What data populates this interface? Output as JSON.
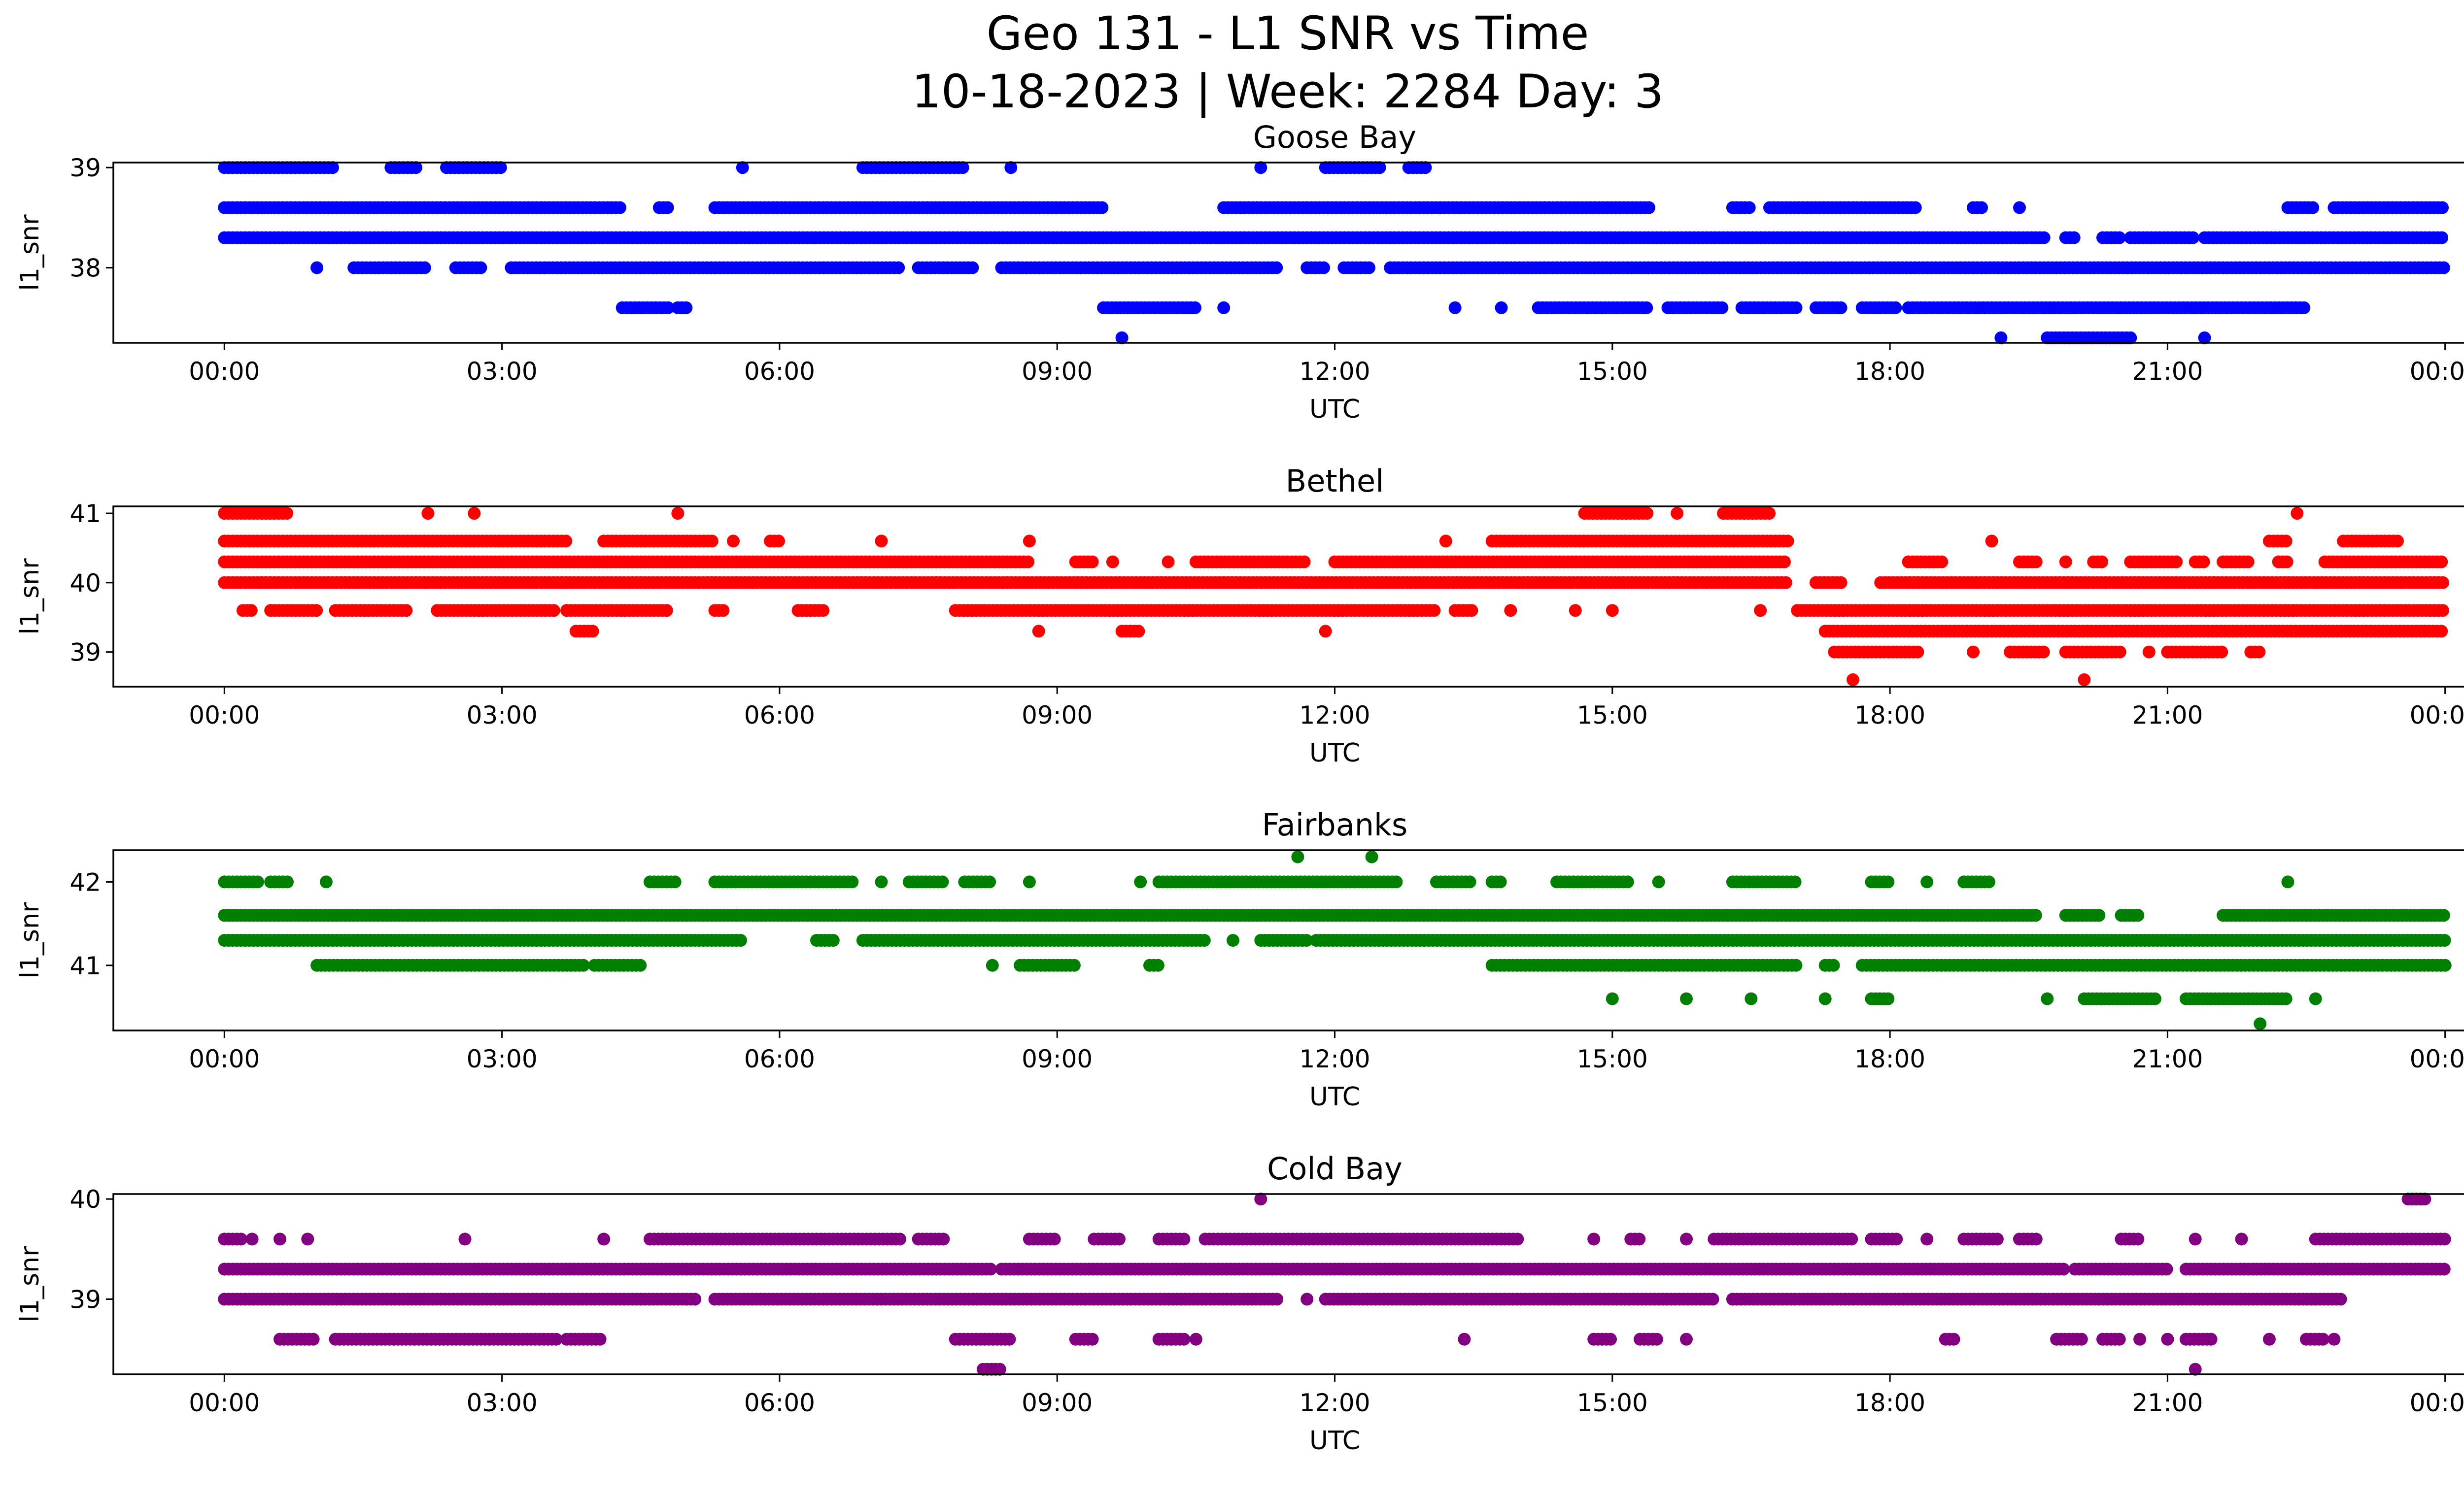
{
  "figure": {
    "title_line1": "Geo 131 - L1 SNR vs Time",
    "title_line2": "10-18-2023 | Week: 2284 Day: 3"
  },
  "chart_data": [
    {
      "type": "scatter",
      "title": "Goose Bay",
      "xlabel": "UTC",
      "ylabel": "l1_snr",
      "color": "#0000ff",
      "x_unit": "hours UTC",
      "x_ticks": [
        "00:00",
        "03:00",
        "06:00",
        "09:00",
        "12:00",
        "15:00",
        "18:00",
        "21:00",
        "00:00"
      ],
      "xlim": [
        -1.2,
        25.2
      ],
      "y_ticks": [
        38,
        39
      ],
      "ylim": [
        37.25,
        39.05
      ],
      "levels": [
        {
          "y": 39.0,
          "segments": [
            [
              0.0,
              1.2
            ],
            [
              1.8,
              2.1
            ],
            [
              2.4,
              3.0
            ],
            [
              5.6,
              5.6
            ],
            [
              6.9,
              8.0
            ],
            [
              8.5,
              8.5
            ],
            [
              11.2,
              11.2
            ],
            [
              11.9,
              12.5
            ],
            [
              12.8,
              13.0
            ]
          ]
        },
        {
          "y": 38.6,
          "segments": [
            [
              0.0,
              4.3
            ],
            [
              4.7,
              4.8
            ],
            [
              5.3,
              9.5
            ],
            [
              10.8,
              14.0
            ],
            [
              14.0,
              15.4
            ],
            [
              16.3,
              16.5
            ],
            [
              16.7,
              18.3
            ],
            [
              18.9,
              19.0
            ],
            [
              19.4,
              19.4
            ],
            [
              22.3,
              22.6
            ],
            [
              22.8,
              24.0
            ]
          ]
        },
        {
          "y": 38.3,
          "segments": [
            [
              0.0,
              19.7
            ],
            [
              19.9,
              20.0
            ],
            [
              20.3,
              20.5
            ],
            [
              20.6,
              21.3
            ],
            [
              21.4,
              24.0
            ]
          ]
        },
        {
          "y": 38.0,
          "segments": [
            [
              1.0,
              1.0
            ],
            [
              1.4,
              2.2
            ],
            [
              2.5,
              2.8
            ],
            [
              3.1,
              7.3
            ],
            [
              7.5,
              8.1
            ],
            [
              8.4,
              11.4
            ],
            [
              11.7,
              11.9
            ],
            [
              12.1,
              12.4
            ],
            [
              12.6,
              24.0
            ]
          ]
        },
        {
          "y": 37.6,
          "segments": [
            [
              4.3,
              4.8
            ],
            [
              4.9,
              5.0
            ],
            [
              9.5,
              10.5
            ],
            [
              10.8,
              10.8
            ],
            [
              13.3,
              13.3
            ],
            [
              13.8,
              13.8
            ],
            [
              14.2,
              15.4
            ],
            [
              15.6,
              16.2
            ],
            [
              16.4,
              17.0
            ],
            [
              17.2,
              17.5
            ],
            [
              17.7,
              18.1
            ],
            [
              18.2,
              22.5
            ]
          ]
        },
        {
          "y": 37.3,
          "segments": [
            [
              9.7,
              9.7
            ],
            [
              19.2,
              19.2
            ],
            [
              19.7,
              20.6
            ],
            [
              21.4,
              21.4
            ]
          ]
        }
      ]
    },
    {
      "type": "scatter",
      "title": "Bethel",
      "xlabel": "UTC",
      "ylabel": "l1_snr",
      "color": "#ff0000",
      "x_unit": "hours UTC",
      "x_ticks": [
        "00:00",
        "03:00",
        "06:00",
        "09:00",
        "12:00",
        "15:00",
        "18:00",
        "21:00",
        "00:00"
      ],
      "xlim": [
        -1.2,
        25.2
      ],
      "y_ticks": [
        39,
        40,
        41
      ],
      "ylim": [
        38.5,
        41.1
      ],
      "levels": [
        {
          "y": 41.0,
          "segments": [
            [
              0.0,
              0.7
            ],
            [
              2.2,
              2.2
            ],
            [
              2.7,
              2.7
            ],
            [
              4.9,
              4.9
            ],
            [
              14.7,
              15.4
            ],
            [
              15.7,
              15.7
            ],
            [
              16.2,
              16.7
            ],
            [
              22.4,
              22.4
            ]
          ]
        },
        {
          "y": 40.6,
          "segments": [
            [
              0.0,
              3.7
            ],
            [
              4.1,
              5.3
            ],
            [
              5.5,
              5.5
            ],
            [
              5.9,
              6.0
            ],
            [
              7.1,
              7.1
            ],
            [
              8.7,
              8.7
            ],
            [
              13.2,
              13.2
            ],
            [
              13.7,
              16.9
            ],
            [
              19.1,
              19.1
            ],
            [
              22.1,
              22.3
            ],
            [
              22.9,
              23.5
            ]
          ]
        },
        {
          "y": 40.3,
          "segments": [
            [
              0.0,
              8.7
            ],
            [
              9.2,
              9.4
            ],
            [
              9.6,
              9.6
            ],
            [
              10.2,
              10.2
            ],
            [
              10.5,
              11.7
            ],
            [
              12.0,
              16.9
            ],
            [
              18.2,
              18.6
            ],
            [
              19.4,
              19.6
            ],
            [
              19.9,
              19.9
            ],
            [
              20.2,
              20.3
            ],
            [
              20.6,
              21.1
            ],
            [
              21.3,
              21.4
            ],
            [
              21.6,
              21.9
            ],
            [
              22.2,
              22.3
            ],
            [
              22.7,
              24.0
            ]
          ]
        },
        {
          "y": 40.0,
          "segments": [
            [
              0.0,
              16.9
            ],
            [
              17.2,
              17.5
            ],
            [
              17.9,
              24.0
            ]
          ]
        },
        {
          "y": 39.6,
          "segments": [
            [
              0.2,
              0.3
            ],
            [
              0.5,
              1.0
            ],
            [
              1.2,
              2.0
            ],
            [
              2.3,
              3.6
            ],
            [
              3.7,
              4.8
            ],
            [
              5.3,
              5.4
            ],
            [
              6.2,
              6.5
            ],
            [
              7.9,
              13.1
            ],
            [
              13.3,
              13.5
            ],
            [
              13.9,
              13.9
            ],
            [
              14.6,
              14.6
            ],
            [
              15.0,
              15.0
            ],
            [
              16.6,
              16.6
            ],
            [
              17.0,
              24.0
            ]
          ]
        },
        {
          "y": 39.3,
          "segments": [
            [
              3.8,
              4.0
            ],
            [
              8.8,
              8.8
            ],
            [
              9.7,
              9.9
            ],
            [
              11.9,
              11.9
            ],
            [
              17.3,
              24.0
            ]
          ]
        },
        {
          "y": 39.0,
          "segments": [
            [
              17.4,
              18.3
            ],
            [
              18.9,
              18.9
            ],
            [
              19.3,
              19.7
            ],
            [
              19.9,
              20.5
            ],
            [
              20.8,
              20.8
            ],
            [
              21.0,
              21.6
            ],
            [
              21.9,
              22.0
            ]
          ]
        },
        {
          "y": 38.6,
          "segments": [
            [
              17.6,
              17.6
            ],
            [
              20.1,
              20.1
            ]
          ]
        }
      ]
    },
    {
      "type": "scatter",
      "title": "Fairbanks",
      "xlabel": "UTC",
      "ylabel": "l1_snr",
      "color": "#008000",
      "x_unit": "hours UTC",
      "x_ticks": [
        "00:00",
        "03:00",
        "06:00",
        "09:00",
        "12:00",
        "15:00",
        "18:00",
        "21:00",
        "00:00"
      ],
      "xlim": [
        -1.2,
        25.2
      ],
      "y_ticks": [
        41,
        42
      ],
      "ylim": [
        40.22,
        42.38
      ],
      "levels": [
        {
          "y": 42.3,
          "segments": [
            [
              11.6,
              11.6
            ],
            [
              12.4,
              12.4
            ]
          ]
        },
        {
          "y": 42.0,
          "segments": [
            [
              0.0,
              0.4
            ],
            [
              0.5,
              0.7
            ],
            [
              1.1,
              1.1
            ],
            [
              4.6,
              4.9
            ],
            [
              5.3,
              6.8
            ],
            [
              7.1,
              7.1
            ],
            [
              7.4,
              7.8
            ],
            [
              8.0,
              8.3
            ],
            [
              8.7,
              8.7
            ],
            [
              9.9,
              9.9
            ],
            [
              10.1,
              12.7
            ],
            [
              13.1,
              13.5
            ],
            [
              13.7,
              13.8
            ],
            [
              14.4,
              15.2
            ],
            [
              15.5,
              15.5
            ],
            [
              16.3,
              17.0
            ],
            [
              17.8,
              18.0
            ],
            [
              18.4,
              18.4
            ],
            [
              18.8,
              19.1
            ],
            [
              22.3,
              22.3
            ]
          ]
        },
        {
          "y": 41.6,
          "segments": [
            [
              0.0,
              19.6
            ],
            [
              19.9,
              20.3
            ],
            [
              20.5,
              20.7
            ],
            [
              21.6,
              24.0
            ]
          ]
        },
        {
          "y": 41.3,
          "segments": [
            [
              0.0,
              5.6
            ],
            [
              6.4,
              6.6
            ],
            [
              6.9,
              10.6
            ],
            [
              10.9,
              10.9
            ],
            [
              11.2,
              11.7
            ],
            [
              11.8,
              24.0
            ]
          ]
        },
        {
          "y": 41.0,
          "segments": [
            [
              1.0,
              3.9
            ],
            [
              4.0,
              4.5
            ],
            [
              8.3,
              8.3
            ],
            [
              8.6,
              9.2
            ],
            [
              10.0,
              10.1
            ],
            [
              13.7,
              17.0
            ],
            [
              17.3,
              17.4
            ],
            [
              17.7,
              24.0
            ]
          ]
        },
        {
          "y": 40.6,
          "segments": [
            [
              15.0,
              15.0
            ],
            [
              15.8,
              15.8
            ],
            [
              16.5,
              16.5
            ],
            [
              17.3,
              17.3
            ],
            [
              17.8,
              18.0
            ],
            [
              19.7,
              19.7
            ],
            [
              20.1,
              20.9
            ],
            [
              21.2,
              22.3
            ],
            [
              22.6,
              22.6
            ]
          ]
        },
        {
          "y": 40.3,
          "segments": [
            [
              22.0,
              22.0
            ]
          ]
        }
      ]
    },
    {
      "type": "scatter",
      "title": "Cold Bay",
      "xlabel": "UTC",
      "ylabel": "l1_snr",
      "color": "#800080",
      "x_unit": "hours UTC",
      "x_ticks": [
        "00:00",
        "03:00",
        "06:00",
        "09:00",
        "12:00",
        "15:00",
        "18:00",
        "21:00",
        "00:00"
      ],
      "xlim": [
        -1.2,
        25.2
      ],
      "y_ticks": [
        39,
        40
      ],
      "ylim": [
        38.25,
        40.05
      ],
      "levels": [
        {
          "y": 40.0,
          "segments": [
            [
              11.2,
              11.2
            ],
            [
              23.6,
              23.8
            ]
          ]
        },
        {
          "y": 39.6,
          "segments": [
            [
              0.0,
              0.2
            ],
            [
              0.3,
              0.3
            ],
            [
              0.6,
              0.6
            ],
            [
              0.9,
              0.9
            ],
            [
              2.6,
              2.6
            ],
            [
              4.1,
              4.1
            ],
            [
              4.6,
              7.3
            ],
            [
              7.5,
              7.8
            ],
            [
              8.7,
              9.0
            ],
            [
              9.4,
              9.7
            ],
            [
              10.1,
              10.4
            ],
            [
              10.6,
              14.0
            ],
            [
              14.8,
              14.8
            ],
            [
              15.2,
              15.3
            ],
            [
              15.8,
              15.8
            ],
            [
              16.1,
              17.6
            ],
            [
              17.8,
              18.1
            ],
            [
              18.4,
              18.4
            ],
            [
              18.8,
              19.2
            ],
            [
              19.4,
              19.6
            ],
            [
              20.5,
              20.7
            ],
            [
              21.3,
              21.3
            ],
            [
              21.8,
              21.8
            ],
            [
              22.6,
              24.0
            ]
          ]
        },
        {
          "y": 39.3,
          "segments": [
            [
              0.0,
              8.3
            ],
            [
              8.4,
              19.9
            ],
            [
              20.0,
              21.0
            ],
            [
              21.2,
              24.0
            ]
          ]
        },
        {
          "y": 39.0,
          "segments": [
            [
              0.0,
              5.1
            ],
            [
              5.3,
              11.4
            ],
            [
              11.7,
              11.7
            ],
            [
              11.9,
              16.1
            ],
            [
              16.3,
              22.9
            ]
          ]
        },
        {
          "y": 38.6,
          "segments": [
            [
              0.6,
              1.0
            ],
            [
              1.2,
              3.6
            ],
            [
              3.7,
              4.1
            ],
            [
              7.9,
              8.5
            ],
            [
              9.2,
              9.4
            ],
            [
              10.1,
              10.4
            ],
            [
              10.5,
              10.5
            ],
            [
              13.4,
              13.4
            ],
            [
              14.8,
              15.0
            ],
            [
              15.3,
              15.5
            ],
            [
              15.8,
              15.8
            ],
            [
              18.6,
              18.7
            ],
            [
              19.8,
              20.1
            ],
            [
              20.3,
              20.5
            ],
            [
              20.7,
              20.7
            ],
            [
              21.0,
              21.0
            ],
            [
              21.2,
              21.5
            ],
            [
              22.1,
              22.1
            ],
            [
              22.5,
              22.7
            ],
            [
              22.8,
              22.8
            ]
          ]
        },
        {
          "y": 38.3,
          "segments": [
            [
              8.2,
              8.4
            ],
            [
              21.3,
              21.3
            ]
          ]
        }
      ]
    }
  ]
}
